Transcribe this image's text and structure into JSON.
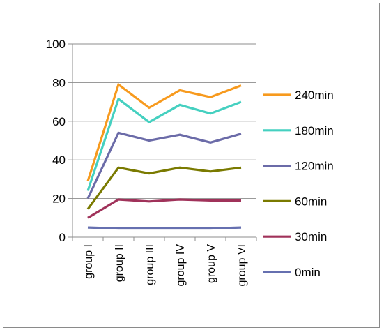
{
  "chart_data": {
    "type": "line",
    "categories": [
      "group I",
      "group II",
      "group III",
      "group IV",
      "group V",
      "group VI"
    ],
    "ylim": [
      0,
      100
    ],
    "yticks": [
      0,
      20,
      40,
      60,
      80,
      100
    ],
    "grid": true,
    "legend_position": "right",
    "series": [
      {
        "name": "240min",
        "color": "#F79A1E",
        "values": [
          29,
          79,
          67,
          76,
          72.5,
          78.5
        ]
      },
      {
        "name": "180min",
        "color": "#45D0C0",
        "values": [
          24,
          71.5,
          59.5,
          68.5,
          64,
          70
        ]
      },
      {
        "name": "120min",
        "color": "#6B6BA8",
        "values": [
          20,
          54,
          50,
          53,
          49,
          53.5
        ]
      },
      {
        "name": "60min",
        "color": "#7A7A00",
        "values": [
          14.5,
          36,
          33,
          36,
          34,
          36
        ]
      },
      {
        "name": "30min",
        "color": "#A0325A",
        "values": [
          10,
          19.5,
          18.5,
          19.5,
          19,
          19
        ]
      },
      {
        "name": "0min",
        "color": "#6670B0",
        "values": [
          5,
          4.5,
          4.5,
          4.5,
          4.5,
          5
        ]
      }
    ]
  }
}
